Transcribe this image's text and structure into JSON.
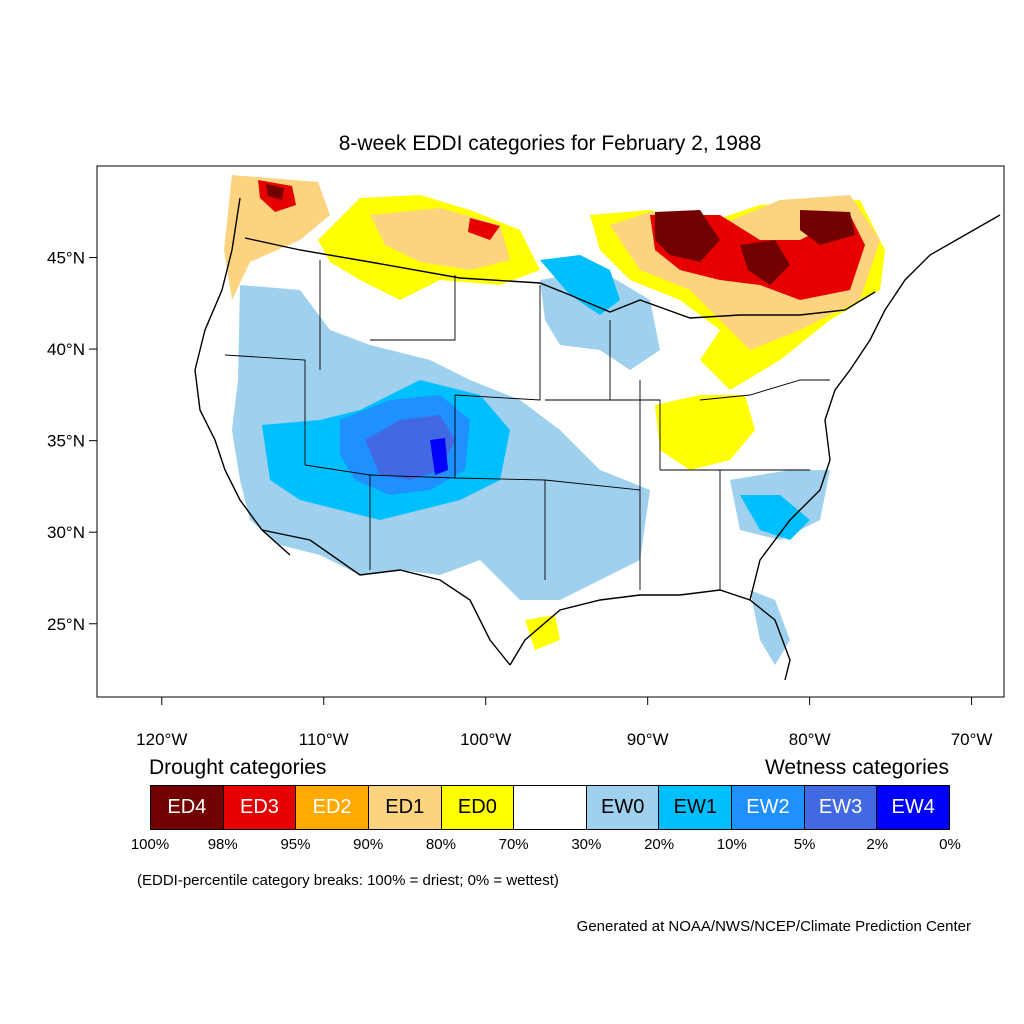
{
  "title": "8-week EDDI categories for February 2, 1988",
  "axes": {
    "lon_labels": [
      "120°W",
      "110°W",
      "100°W",
      "90°W",
      "80°W",
      "70°W"
    ],
    "lon_values": [
      -120,
      -110,
      -100,
      -90,
      -80,
      -70
    ],
    "lat_labels": [
      "45°N",
      "40°N",
      "35°N",
      "30°N",
      "25°N"
    ],
    "lat_values": [
      45,
      40,
      35,
      30,
      25
    ],
    "lon_range": [
      -124,
      -68
    ],
    "lat_range": [
      21,
      50
    ]
  },
  "legend": {
    "drought_title": "Drought categories",
    "wetness_title": "Wetness categories",
    "categories": [
      {
        "label": "ED4",
        "color": "#730000",
        "text_color": "#ffffff"
      },
      {
        "label": "ED3",
        "color": "#e60000",
        "text_color": "#ffffff"
      },
      {
        "label": "ED2",
        "color": "#ffaa00",
        "text_color": "#ffffff"
      },
      {
        "label": "ED1",
        "color": "#fcd37f",
        "text_color": "#000000"
      },
      {
        "label": "ED0",
        "color": "#ffff00",
        "text_color": "#000000"
      },
      {
        "label": "",
        "color": "#ffffff",
        "text_color": "#000000"
      },
      {
        "label": "EW0",
        "color": "#9fd0ee",
        "text_color": "#000000"
      },
      {
        "label": "EW1",
        "color": "#00bfff",
        "text_color": "#000000"
      },
      {
        "label": "EW2",
        "color": "#1e90ff",
        "text_color": "#ffffff"
      },
      {
        "label": "EW3",
        "color": "#4169e1",
        "text_color": "#ffffff"
      },
      {
        "label": "EW4",
        "color": "#0000ff",
        "text_color": "#ffffff"
      }
    ],
    "percentiles": [
      "100%",
      "98%",
      "95%",
      "90%",
      "80%",
      "70%",
      "30%",
      "20%",
      "10%",
      "5%",
      "2%",
      "0%"
    ],
    "note": "(EDDI-percentile category breaks: 100% = driest; 0% = wettest)"
  },
  "credit": "Generated at NOAA/NWS/NCEP/Climate Prediction Center"
}
